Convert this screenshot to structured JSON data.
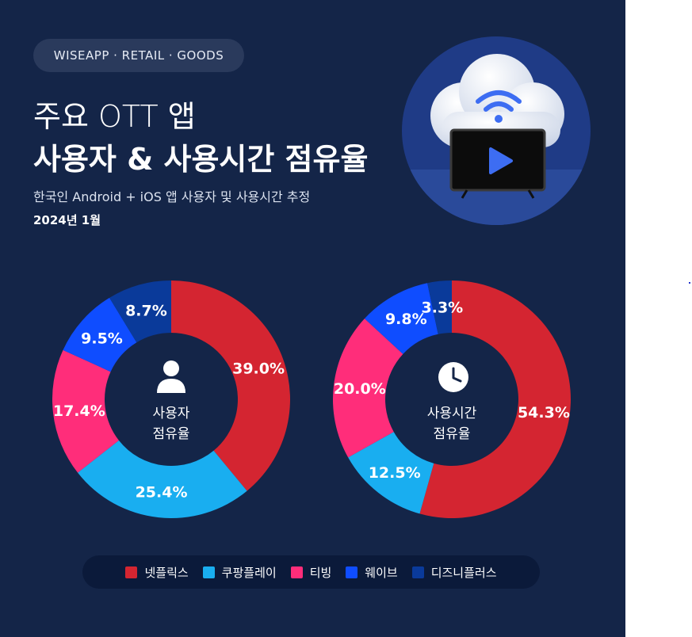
{
  "header": {
    "badge": "WISEAPP · RETAIL · GOODS",
    "title_line1": "주요 OTT 앱",
    "title_line2": "사용자 & 사용시간 점유율",
    "subtitle": "한국인 Android + iOS 앱 사용자 및 사용시간 추정",
    "date": "2024년 1월"
  },
  "illustration": {
    "icon": "cloud-wifi-tv-play-icon"
  },
  "chart_data": [
    {
      "type": "donut",
      "center_label": [
        "사용자",
        "점유율"
      ],
      "center_icon": "person-icon",
      "series": [
        {
          "name": "넷플릭스",
          "value": 39.0,
          "label": "39.0%"
        },
        {
          "name": "쿠팡플레이",
          "value": 25.4,
          "label": "25.4%"
        },
        {
          "name": "티빙",
          "value": 17.4,
          "label": "17.4%"
        },
        {
          "name": "웨이브",
          "value": 9.5,
          "label": "9.5%"
        },
        {
          "name": "디즈니플러스",
          "value": 8.7,
          "label": "8.7%"
        }
      ]
    },
    {
      "type": "donut",
      "center_label": [
        "사용시간",
        "점유율"
      ],
      "center_icon": "clock-icon",
      "series": [
        {
          "name": "넷플릭스",
          "value": 54.3,
          "label": "54.3%"
        },
        {
          "name": "쿠팡플레이",
          "value": 12.5,
          "label": "12.5%"
        },
        {
          "name": "티빙",
          "value": 20.0,
          "label": "20.0%"
        },
        {
          "name": "웨이브",
          "value": 9.8,
          "label": "9.8%"
        },
        {
          "name": "디즈니플러스",
          "value": 3.3,
          "label": "3.3%"
        }
      ]
    }
  ],
  "legend": [
    {
      "label": "넷플릭스",
      "color": "#d42531"
    },
    {
      "label": "쿠팡플레이",
      "color": "#19aef0"
    },
    {
      "label": "티빙",
      "color": "#ff2d7a"
    },
    {
      "label": "웨이브",
      "color": "#0f4dff"
    },
    {
      "label": "디즈니플러스",
      "color": "#0a3a9a"
    }
  ]
}
